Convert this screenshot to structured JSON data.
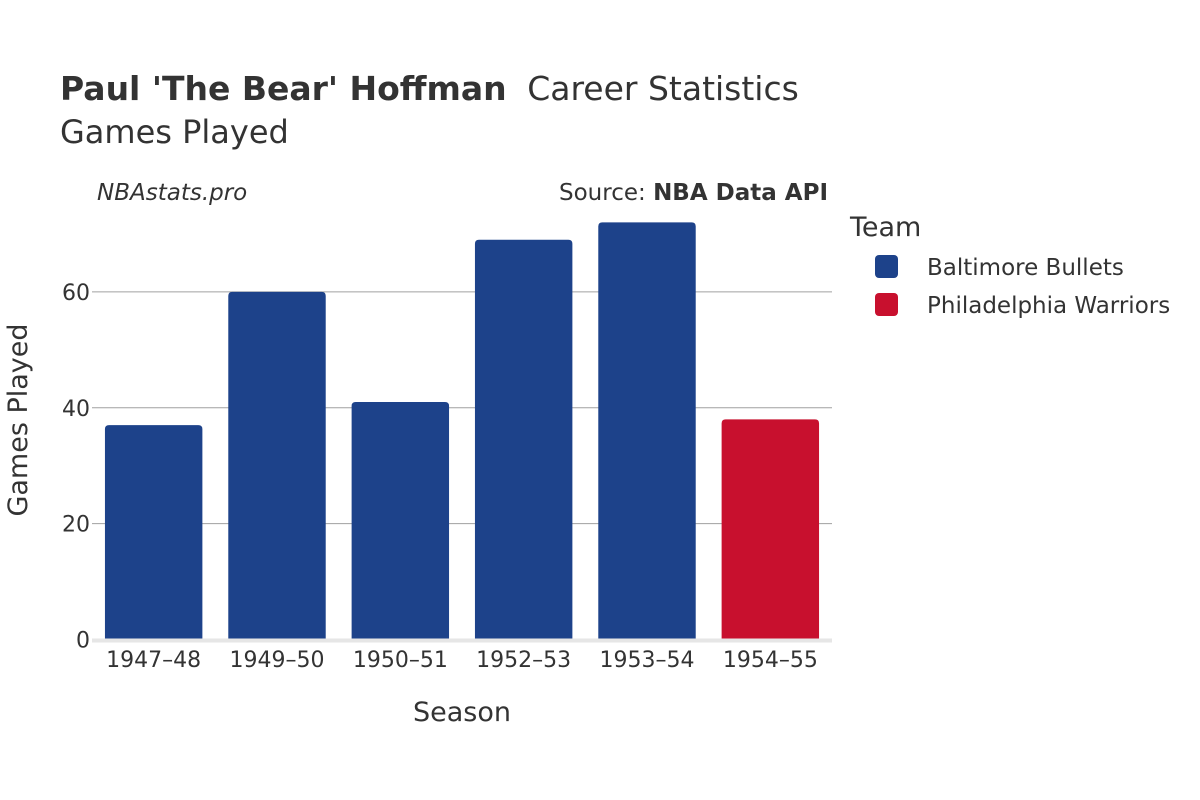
{
  "header": {
    "title_bold": "Paul 'The Bear' Hoffman",
    "title_rest": "Career Statistics",
    "subtitle": "Games Played",
    "watermark": "NBAstats.pro",
    "source_prefix": "Source: ",
    "source_name": "NBA Data API"
  },
  "colors": {
    "Baltimore Bullets": "#1d428a",
    "Philadelphia Warriors": "#c8102e",
    "grid": "#a0a0a0",
    "baseline": "#e6e6e6",
    "text": "#333333"
  },
  "chart_data": {
    "type": "bar",
    "xlabel": "Season",
    "ylabel": "Games Played",
    "ylim": [
      0,
      75
    ],
    "yticks": [
      0,
      20,
      40,
      60
    ],
    "grid": true,
    "legend_title": "Team",
    "legend_position": "right",
    "categories": [
      "1947–48",
      "1949–50",
      "1950–51",
      "1952–53",
      "1953–54",
      "1954–55"
    ],
    "values": [
      37,
      60,
      41,
      69,
      72,
      38
    ],
    "teams": [
      "Baltimore Bullets",
      "Baltimore Bullets",
      "Baltimore Bullets",
      "Baltimore Bullets",
      "Baltimore Bullets",
      "Philadelphia Warriors"
    ],
    "series": [
      {
        "name": "Baltimore Bullets"
      },
      {
        "name": "Philadelphia Warriors"
      }
    ]
  }
}
